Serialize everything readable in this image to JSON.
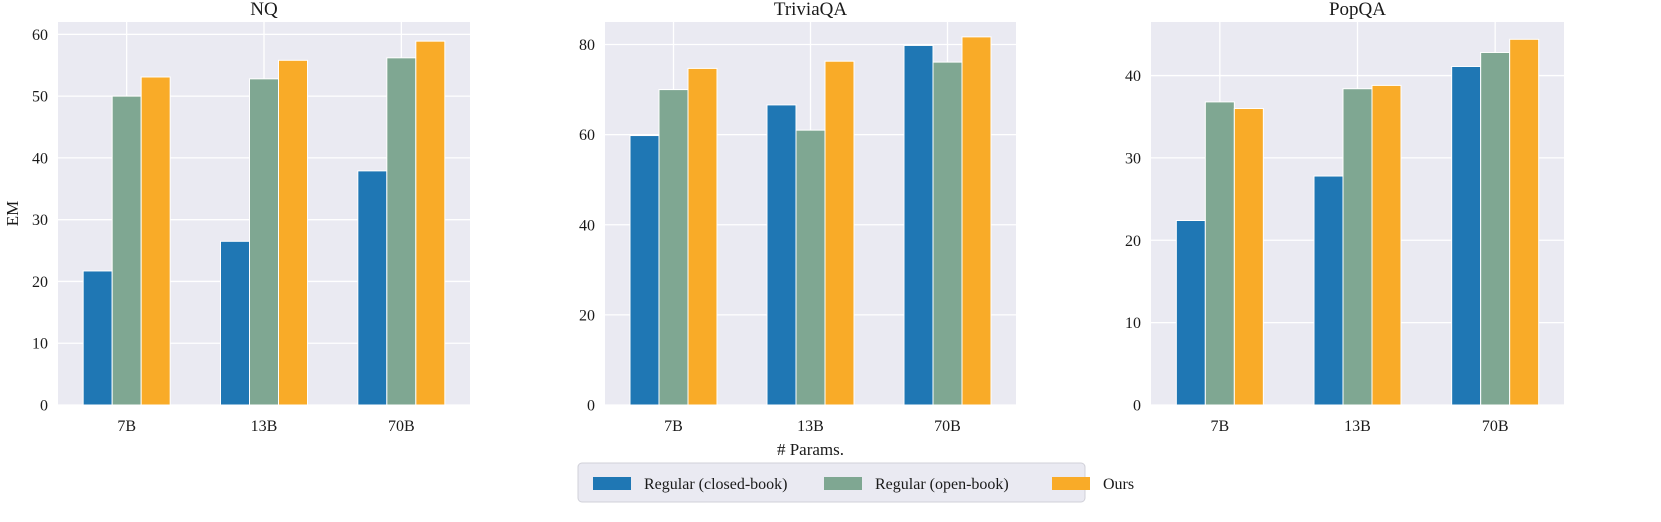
{
  "chart_data": [
    {
      "type": "bar",
      "title": "NQ",
      "ylabel": "EM",
      "xlabel": "",
      "categories": [
        "7B",
        "13B",
        "70B"
      ],
      "ylim": [
        0,
        62
      ],
      "yticks": [
        0,
        10,
        20,
        30,
        40,
        50,
        60
      ],
      "series": [
        {
          "name": "Regular (closed-book)",
          "values": [
            21.7,
            26.5,
            37.9
          ]
        },
        {
          "name": "Regular (open-book)",
          "values": [
            50.0,
            52.8,
            56.2
          ]
        },
        {
          "name": "Ours",
          "values": [
            53.1,
            55.8,
            58.9
          ]
        }
      ]
    },
    {
      "type": "bar",
      "title": "TriviaQA",
      "ylabel": "",
      "xlabel": "# Params.",
      "categories": [
        "7B",
        "13B",
        "70B"
      ],
      "ylim": [
        0,
        85
      ],
      "yticks": [
        0,
        20,
        40,
        60,
        80
      ],
      "series": [
        {
          "name": "Regular (closed-book)",
          "values": [
            59.8,
            66.6,
            79.8
          ]
        },
        {
          "name": "Regular (open-book)",
          "values": [
            70.0,
            61.0,
            76.1
          ]
        },
        {
          "name": "Ours",
          "values": [
            74.7,
            76.3,
            81.7
          ]
        }
      ]
    },
    {
      "type": "bar",
      "title": "PopQA",
      "ylabel": "",
      "xlabel": "",
      "categories": [
        "7B",
        "13B",
        "70B"
      ],
      "ylim": [
        0,
        46.5
      ],
      "yticks": [
        0,
        10,
        20,
        30,
        40
      ],
      "series": [
        {
          "name": "Regular (closed-book)",
          "values": [
            22.4,
            27.8,
            41.1
          ]
        },
        {
          "name": "Regular (open-book)",
          "values": [
            36.8,
            38.4,
            42.8
          ]
        },
        {
          "name": "Ours",
          "values": [
            36.0,
            38.8,
            44.4
          ]
        }
      ]
    }
  ],
  "legend": {
    "placement": "bottom-center",
    "entries": [
      "Regular (closed-book)",
      "Regular (open-book)",
      "Ours"
    ]
  },
  "colors": {
    "series": [
      "#1f77b4",
      "#7fa792",
      "#f9ab28"
    ],
    "plot_bg": "#eaeaf2",
    "grid": "#ffffff"
  }
}
